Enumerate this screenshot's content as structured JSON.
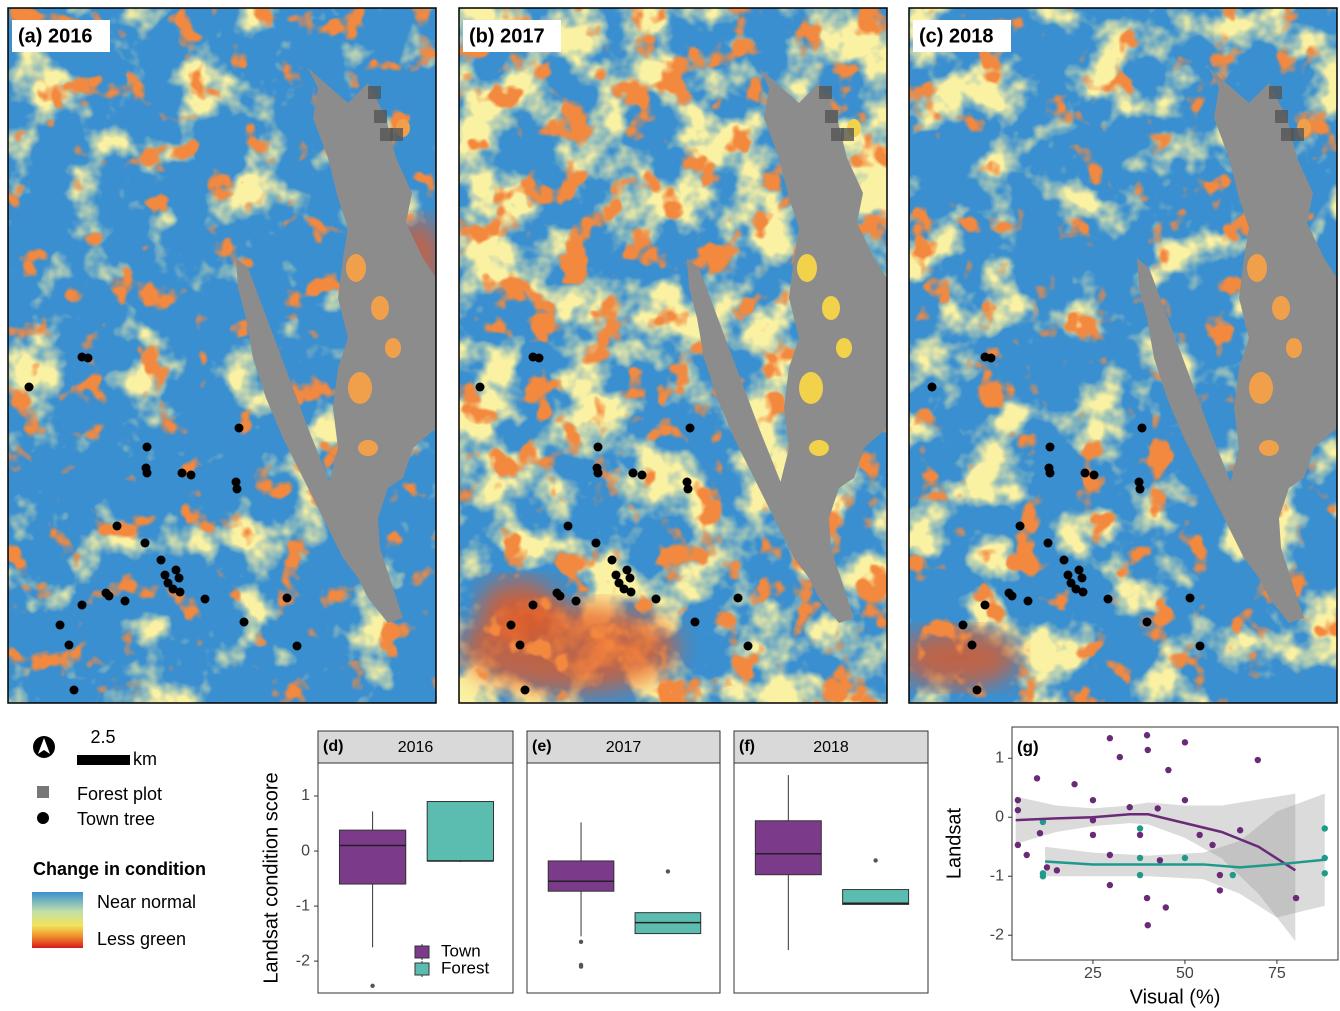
{
  "maps": [
    {
      "label": "(a) 2016"
    },
    {
      "label": "(b) 2017"
    },
    {
      "label": "(c) 2018"
    }
  ],
  "legend": {
    "scale_value": "2.5",
    "scale_unit": "km",
    "items": [
      "Forest plot",
      "Town tree"
    ],
    "title": "Change in condition",
    "high": "Near normal",
    "low": "Less green"
  },
  "chart_data": [
    {
      "type": "box",
      "panel": "(d)",
      "title": "2016",
      "ylabel": "Landsat condition score",
      "categories": [
        "Town",
        "Forest"
      ],
      "colors": [
        "#7b3a8a",
        "#5bbcb0"
      ],
      "boxes": [
        {
          "low": -1.75,
          "q1": -0.6,
          "median": 0.1,
          "q3": 0.38,
          "high": 0.72,
          "outliers": [
            -2.45
          ]
        },
        {
          "low": -0.2,
          "q1": -0.18,
          "median": -0.18,
          "q3": 0.9,
          "high": 0.9,
          "outliers": []
        }
      ],
      "ylim": [
        -2.58,
        1.6
      ],
      "yticks": [
        -2,
        -1,
        0,
        1
      ],
      "legend": "bottom-right"
    },
    {
      "type": "box",
      "panel": "(e)",
      "title": "2017",
      "colors": [
        "#7b3a8a",
        "#5bbcb0"
      ],
      "boxes": [
        {
          "low": -1.55,
          "q1": -0.73,
          "median": -0.55,
          "q3": -0.18,
          "high": 0.52,
          "outliers": [
            -1.65,
            -2.07,
            -2.1
          ]
        },
        {
          "low": -1.5,
          "q1": -1.5,
          "median": -1.3,
          "q3": -1.12,
          "high": -1.12,
          "outliers": [
            -0.37
          ]
        }
      ],
      "ylim": [
        -2.58,
        1.6
      ]
    },
    {
      "type": "box",
      "panel": "(f)",
      "title": "2018",
      "colors": [
        "#7b3a8a",
        "#5bbcb0"
      ],
      "boxes": [
        {
          "low": -1.8,
          "q1": -0.43,
          "median": -0.05,
          "q3": 0.55,
          "high": 1.38,
          "outliers": []
        },
        {
          "low": -0.97,
          "q1": -0.97,
          "median": -0.95,
          "q3": -0.7,
          "high": -0.7,
          "outliers": [
            -0.17
          ]
        }
      ],
      "ylim": [
        -2.58,
        1.6
      ]
    },
    {
      "type": "scatter",
      "panel": "(g)",
      "xlabel": "Visual (%)",
      "ylabel": "Landsat",
      "xlim": [
        3,
        91.6
      ],
      "ylim": [
        -2.42,
        1.53
      ],
      "xticks": [
        25,
        50,
        75
      ],
      "yticks": [
        -2,
        -1,
        0,
        1
      ],
      "series": [
        {
          "color": "#6a2a78",
          "x": [
            4.6,
            4.6,
            4.6,
            9.8,
            10.6,
            12.5,
            15.2,
            20,
            25,
            25,
            25,
            29.6,
            29.6,
            29.6,
            32.3,
            35,
            37.8,
            39.7,
            39.9,
            39.7,
            39.9,
            42.6,
            43.2,
            44.8,
            45.5,
            50,
            50,
            54,
            57.5,
            59.5,
            59.5,
            65,
            69.8,
            80.2,
            7
          ],
          "y": [
            0.29,
            0.12,
            -0.47,
            0.66,
            -0.27,
            -0.85,
            -0.9,
            0.56,
            0.29,
            -0.05,
            -0.3,
            1.34,
            -0.64,
            -1.15,
            1.02,
            0.17,
            -0.3,
            1.39,
            1.14,
            -1.37,
            -1.83,
            0.15,
            -0.73,
            -1.53,
            0.8,
            1.27,
            0.29,
            -0.3,
            -0.47,
            -0.98,
            -1.24,
            -0.22,
            0.97,
            -1.37,
            -0.64
          ],
          "trend": {
            "x": [
              4,
              15,
              25,
              35,
              40,
              50,
              60,
              70,
              80
            ],
            "y": [
              -0.05,
              -0.02,
              0,
              0.05,
              0.05,
              -0.1,
              -0.25,
              -0.5,
              -0.9
            ],
            "lower": [
              -0.45,
              -0.25,
              -0.15,
              -0.1,
              -0.12,
              -0.35,
              -0.7,
              -1.3,
              -2.1
            ],
            "upper": [
              0.35,
              0.2,
              0.15,
              0.2,
              0.25,
              0.2,
              0.2,
              0.3,
              0.4
            ]
          }
        },
        {
          "color": "#1f9a8a",
          "x": [
            11.4,
            11.4,
            11.4,
            37.8,
            37.8,
            37.8,
            50,
            63,
            88,
            88,
            88
          ],
          "y": [
            -0.08,
            -0.95,
            -1.0,
            -0.19,
            -0.69,
            -0.98,
            -0.69,
            -0.98,
            -0.19,
            -0.69,
            -0.95
          ],
          "trend": {
            "x": [
              12,
              25,
              40,
              55,
              65,
              75,
              88
            ],
            "y": [
              -0.75,
              -0.8,
              -0.8,
              -0.8,
              -0.85,
              -0.8,
              -0.72
            ],
            "lower": [
              -1.0,
              -1.0,
              -1.0,
              -1.05,
              -1.3,
              -1.7,
              -1.5
            ],
            "upper": [
              -0.5,
              -0.6,
              -0.65,
              -0.6,
              -0.4,
              0.1,
              0.4
            ]
          }
        }
      ]
    }
  ]
}
